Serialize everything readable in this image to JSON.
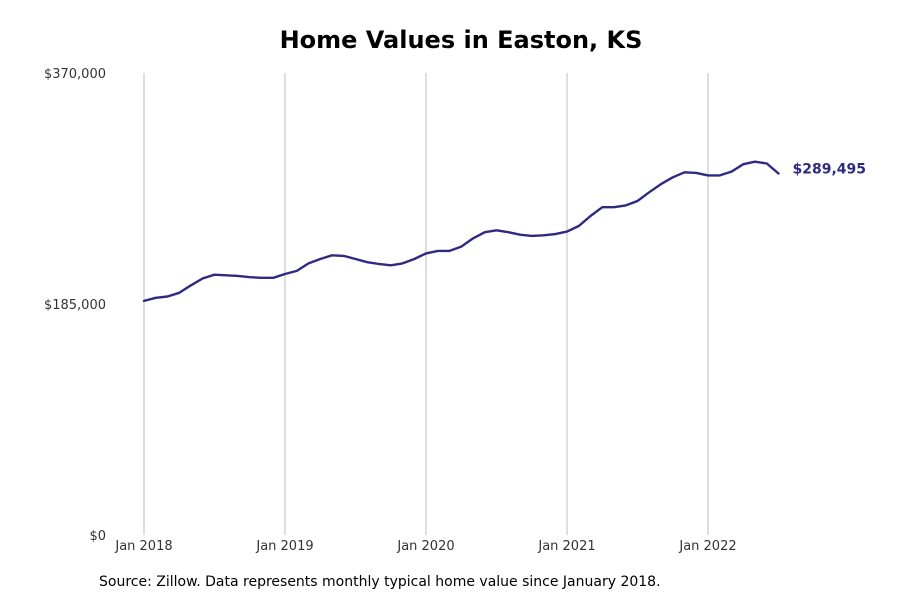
{
  "chart_data": {
    "type": "line",
    "title": "Home Values in Easton, KS",
    "xlabel": "",
    "ylabel": "",
    "ylim": [
      0,
      370000
    ],
    "yticks": [
      {
        "value": 0,
        "label": "$0"
      },
      {
        "value": 185000,
        "label": "$185,000"
      },
      {
        "value": 370000,
        "label": "$370,000"
      }
    ],
    "xticks": [
      {
        "value": 0,
        "label": "Jan 2018"
      },
      {
        "value": 12,
        "label": "Jan 2019"
      },
      {
        "value": 24,
        "label": "Jan 2020"
      },
      {
        "value": 36,
        "label": "Jan 2021"
      },
      {
        "value": 48,
        "label": "Jan 2022"
      }
    ],
    "grid": "vertical",
    "line_color": "#2e2a82",
    "series": [
      {
        "values": [
          187500,
          190000,
          191000,
          194000,
          200000,
          205500,
          208500,
          208000,
          207500,
          206500,
          206000,
          206000,
          209000,
          211500,
          217500,
          221000,
          224000,
          223500,
          221000,
          218500,
          217000,
          216000,
          217500,
          221000,
          225500,
          227500,
          227500,
          231000,
          237500,
          242500,
          244000,
          242500,
          240500,
          239500,
          240000,
          241000,
          243000,
          247500,
          255500,
          262500,
          262500,
          264000,
          267500,
          274500,
          281000,
          286500,
          290500,
          290000,
          288000,
          288000,
          291000,
          297000,
          299000,
          297500,
          289495
        ]
      }
    ],
    "end_label": "$289,495"
  },
  "footer": {
    "source": "Source: Zillow. Data represents monthly typical home value since January 2018."
  }
}
